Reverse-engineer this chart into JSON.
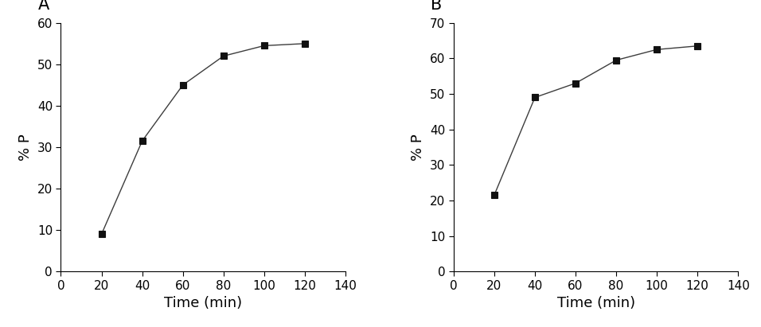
{
  "panel_A": {
    "label": "A",
    "x": [
      20,
      40,
      60,
      80,
      100,
      120
    ],
    "y": [
      9,
      31.5,
      45,
      52,
      54.5,
      55
    ],
    "xlim": [
      0,
      140
    ],
    "ylim": [
      0,
      60
    ],
    "xticks": [
      0,
      20,
      40,
      60,
      80,
      100,
      120,
      140
    ],
    "yticks": [
      0,
      10,
      20,
      30,
      40,
      50,
      60
    ],
    "xlabel": "Time (min)",
    "ylabel": "% P"
  },
  "panel_B": {
    "label": "B",
    "x": [
      20,
      40,
      60,
      80,
      100,
      120
    ],
    "y": [
      21.5,
      49,
      53,
      59.5,
      62.5,
      63.5
    ],
    "xlim": [
      0,
      140
    ],
    "ylim": [
      0,
      70
    ],
    "xticks": [
      0,
      20,
      40,
      60,
      80,
      100,
      120,
      140
    ],
    "yticks": [
      0,
      10,
      20,
      30,
      40,
      50,
      60,
      70
    ],
    "xlabel": "Time (min)",
    "ylabel": "% P"
  },
  "line_color": "#3d3d3d",
  "marker": "s",
  "markersize": 6,
  "markerfacecolor": "#111111",
  "markeredgecolor": "#111111",
  "linewidth": 1.0,
  "background_color": "#ffffff",
  "xlabel_fontsize": 13,
  "ylabel_fontsize": 13,
  "tick_fontsize": 11,
  "panel_label_fontsize": 15,
  "panel_label_fontweight": "normal"
}
